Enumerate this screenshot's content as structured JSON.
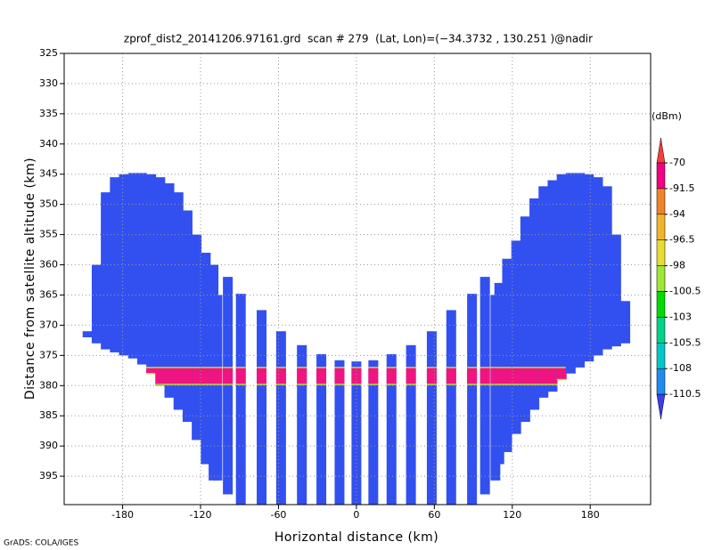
{
  "chart_data": {
    "type": "profile",
    "title": "zprof_dist2_20141206.97161.grd  scan # 279  (Lat, Lon)=(−34.3732 , 130.251 )@nadir",
    "x_label": "Horizontal distance (km)",
    "y_label": "Distance from satellite altitude (km)",
    "footer": "GrADS: COLA/IGES",
    "xlim": [
      -225,
      226.5
    ],
    "xticks": [
      -180,
      -120,
      -60,
      0,
      60,
      120,
      180
    ],
    "ylim": [
      325,
      399.7
    ],
    "yticks": [
      325,
      330,
      335,
      340,
      345,
      350,
      355,
      360,
      365,
      370,
      375,
      380,
      385,
      390,
      395
    ],
    "y_inverted": true,
    "grid": true,
    "color": "#3250f0",
    "columns": {
      "x": [
        -207,
        -200,
        -193,
        -186,
        -179,
        -172,
        -165,
        -158,
        -151,
        -144,
        -137,
        -130,
        -123,
        -116,
        -110,
        -107,
        -99,
        -89,
        -73,
        -58,
        -42,
        -27,
        -13,
        0,
        13,
        27,
        42,
        58,
        73,
        89,
        99,
        107,
        110,
        116,
        123,
        130,
        137,
        144,
        151,
        158,
        165,
        172,
        179,
        186,
        193,
        200,
        207
      ],
      "top": [
        371,
        360,
        348,
        345.5,
        345,
        344.8,
        344.8,
        345,
        345.5,
        346.5,
        348,
        351,
        355,
        358,
        360,
        365,
        362,
        364.8,
        367.5,
        371,
        373.3,
        374.8,
        375.8,
        376,
        375.8,
        374.8,
        373.3,
        371,
        367.5,
        364.8,
        362,
        365,
        363,
        359,
        356,
        352,
        349,
        347,
        346,
        345,
        344.8,
        344.8,
        345,
        345.5,
        347,
        355,
        366
      ],
      "bottom": [
        372,
        373,
        374,
        374.5,
        375,
        375.5,
        376.5,
        378,
        380,
        382,
        384,
        386,
        389,
        393,
        395.7,
        395.7,
        398,
        399.7,
        399.7,
        399.7,
        399.7,
        399.7,
        399.7,
        399.7,
        399.7,
        399.7,
        399.7,
        399.7,
        399.7,
        399.7,
        398,
        395.7,
        393,
        391,
        388,
        386,
        384,
        382,
        381,
        379,
        378,
        377,
        376,
        375,
        374,
        373.5,
        373
      ]
    },
    "band": {
      "top": 377,
      "bottom": 379.8,
      "xlim": [
        -158,
        158
      ],
      "color": "#f01482",
      "edge_color": "#c8dc32"
    },
    "colorbar": {
      "title": "(dBm)",
      "levels": [
        -70,
        -91.5,
        -94,
        -96.5,
        -98,
        -100.5,
        -103,
        -105.5,
        -108,
        -110.5
      ],
      "colors": [
        "#fa3c3c",
        "#f00082",
        "#f08228",
        "#f0b428",
        "#e6dc32",
        "#a0e632",
        "#00dc00",
        "#00d28c",
        "#00c8c8",
        "#1e8cf0",
        "#3c3cf0"
      ]
    }
  }
}
